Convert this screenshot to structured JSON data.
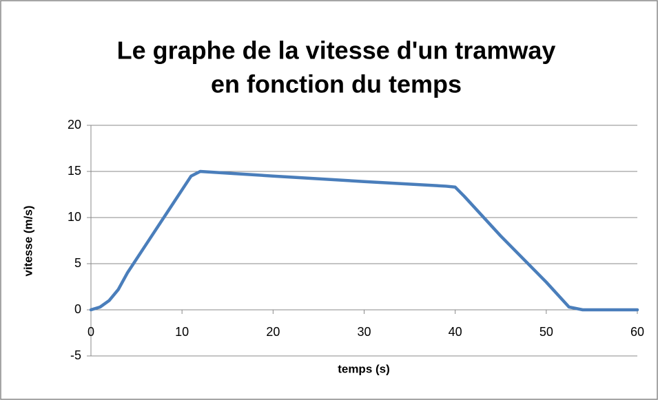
{
  "chart_data": {
    "type": "line",
    "title": [
      "Le graphe de la vitesse d'un tramway",
      "en fonction du temps"
    ],
    "x_label": "temps (s)",
    "y_label": "vitesse (m/s)",
    "x": [
      0,
      1,
      2,
      3,
      4,
      6,
      8,
      10,
      11,
      12,
      20,
      30,
      39,
      40,
      41,
      45,
      50,
      52.5,
      54,
      60
    ],
    "series": [
      {
        "name": "vitesse",
        "color": "#4a7ebb",
        "values": [
          0,
          0.3,
          1,
          2.2,
          4,
          7,
          10,
          13,
          14.5,
          15,
          14.5,
          13.9,
          13.4,
          13.3,
          12.3,
          8,
          3,
          0.3,
          0,
          0
        ]
      }
    ],
    "xlim": [
      0,
      60
    ],
    "xticks": [
      0,
      10,
      20,
      30,
      40,
      50,
      60
    ],
    "ylim": [
      -5,
      20
    ],
    "yticks": [
      -5,
      0,
      5,
      10,
      15,
      20
    ],
    "grid": true
  }
}
